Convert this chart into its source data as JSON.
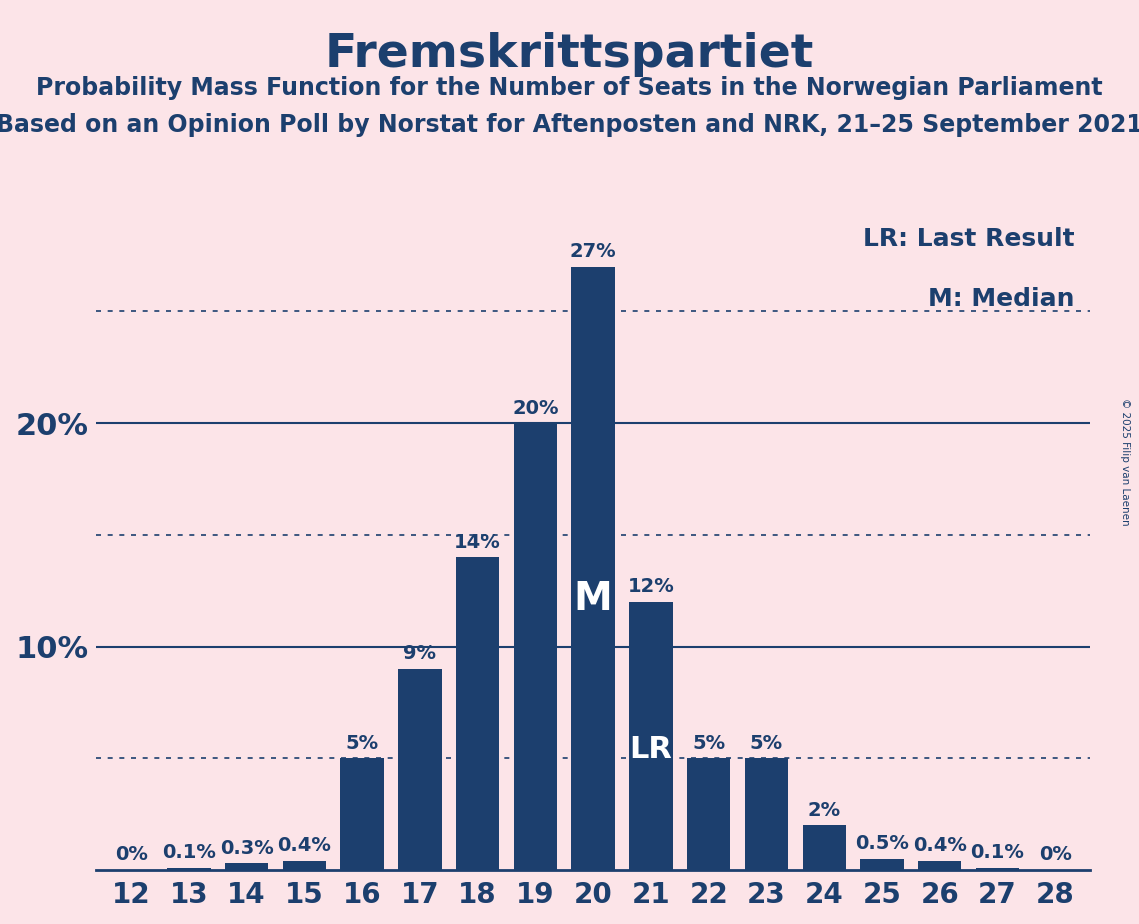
{
  "title": "Fremskrittspartiet",
  "subtitle1": "Probability Mass Function for the Number of Seats in the Norwegian Parliament",
  "subtitle2": "Based on an Opinion Poll by Norstat for Aftenposten and NRK, 21–25 September 2021",
  "copyright": "© 2025 Filip van Laenen",
  "seats": [
    12,
    13,
    14,
    15,
    16,
    17,
    18,
    19,
    20,
    21,
    22,
    23,
    24,
    25,
    26,
    27,
    28
  ],
  "values": [
    0.0,
    0.1,
    0.3,
    0.4,
    5.0,
    9.0,
    14.0,
    20.0,
    27.0,
    12.0,
    5.0,
    5.0,
    2.0,
    0.5,
    0.4,
    0.1,
    0.0
  ],
  "top_labels": [
    "0%",
    "0.1%",
    "0.3%",
    "0.4%",
    "5%",
    "9%",
    "14%",
    "20%",
    "27%",
    "12%",
    "5%",
    "5%",
    "2%",
    "0.5%",
    "0.4%",
    "0.1%",
    "0%"
  ],
  "median_seat": 20,
  "lr_seat": 21,
  "bar_color": "#1c3f6e",
  "background_color": "#fce4e8",
  "text_color": "#1c3f6e",
  "title_fontsize": 34,
  "subtitle_fontsize": 17,
  "axis_tick_fontsize": 20,
  "bar_label_fontsize": 14,
  "legend_fontsize": 18,
  "solid_gridlines": [
    10,
    20
  ],
  "dotted_gridlines": [
    5,
    15,
    25
  ],
  "ylim": [
    0,
    30
  ],
  "yticks": [
    10,
    20
  ],
  "ytick_labels": [
    "10%",
    "20%"
  ]
}
